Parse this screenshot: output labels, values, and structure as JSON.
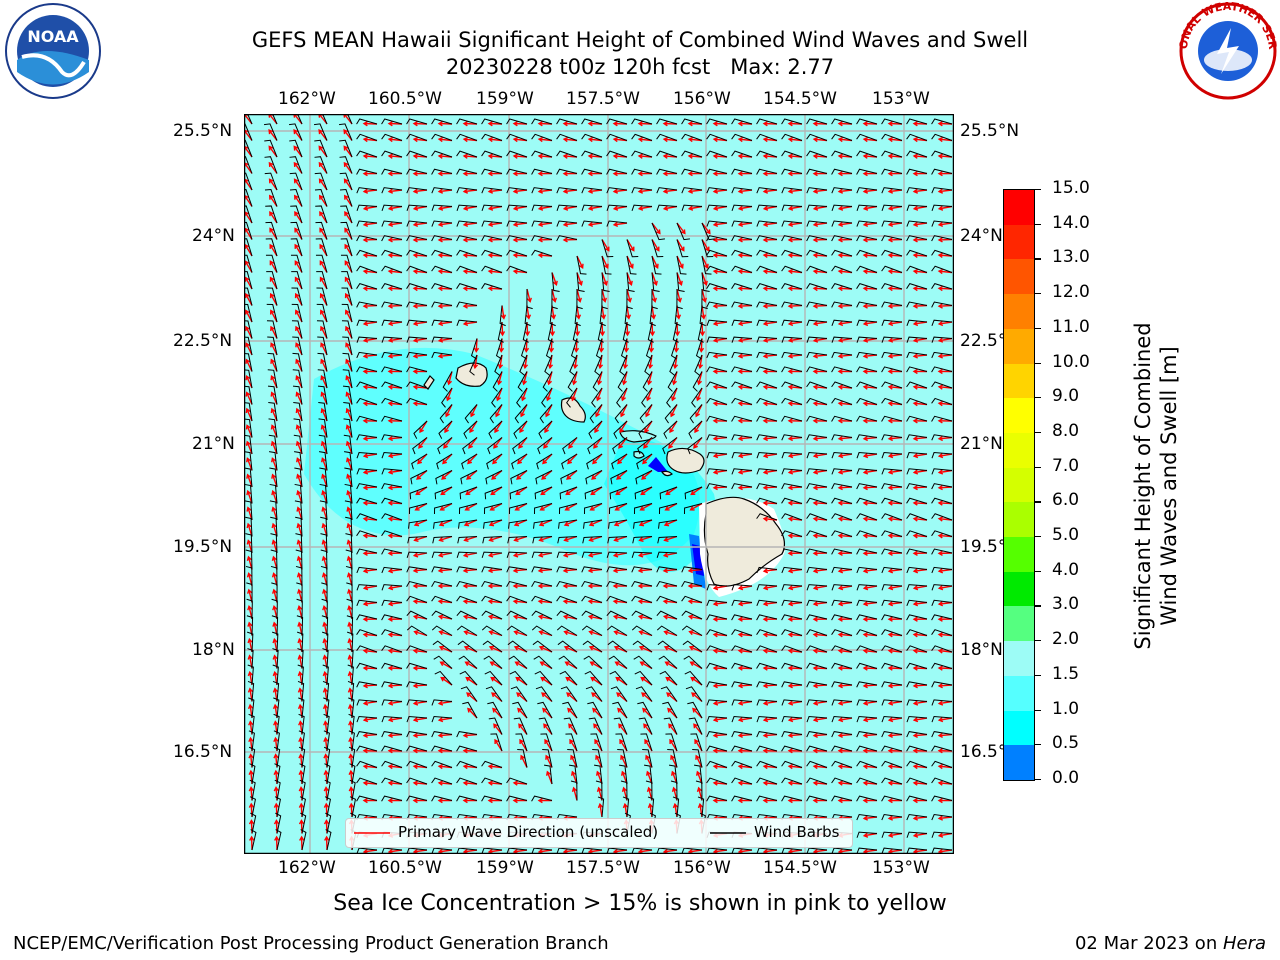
{
  "header": {
    "title_line1": "GEFS MEAN Hawaii Significant Height of Combined Wind Waves and Swell",
    "title_line2": "20230228 t00z 120h fcst   Max: 2.77"
  },
  "logos": {
    "left": "NOAA",
    "right": "NATIONAL WEATHER SERVICE"
  },
  "map": {
    "lon_ticks": [
      "162°W",
      "160.5°W",
      "159°W",
      "157.5°W",
      "156°W",
      "154.5°W",
      "153°W"
    ],
    "lat_ticks": [
      "25.5°N",
      "24°N",
      "22.5°N",
      "21°N",
      "19.5°N",
      "18°N",
      "16.5°N"
    ],
    "ocean_color": "#9dfcf6",
    "land_color": "#efebdc",
    "wave_arrow_color": "#ff0000",
    "barb_color": "#000000"
  },
  "legend": {
    "wave_label": "Primary Wave Direction (unscaled)",
    "barb_label": "Wind Barbs"
  },
  "colorbar": {
    "label_line1": "Significant Height of Combined",
    "label_line2": "Wind Waves and Swell [m]",
    "ticks": [
      "15.0",
      "14.0",
      "13.0",
      "12.0",
      "11.0",
      "10.0",
      "9.0",
      "8.0",
      "7.0",
      "6.0",
      "5.0",
      "4.0",
      "3.0",
      "2.0",
      "1.5",
      "1.0",
      "0.5",
      "0.0"
    ],
    "colors_top_to_bottom": [
      "#ff0000",
      "#ff2600",
      "#ff5500",
      "#ff8000",
      "#ffaa00",
      "#ffd400",
      "#ffff00",
      "#eaff00",
      "#d4ff00",
      "#aaff00",
      "#55ff00",
      "#00ea00",
      "#55ff80",
      "#9dfcf6",
      "#55ffff",
      "#00ffff",
      "#0080ff",
      "#0000ff"
    ]
  },
  "caption": "Sea Ice Concentration > 15% is shown in pink to yellow",
  "footer": {
    "left": "NCEP/EMC/Verification Post Processing Product Generation Branch",
    "right_date": "02 Mar 2023 on ",
    "right_host": "Hera"
  }
}
